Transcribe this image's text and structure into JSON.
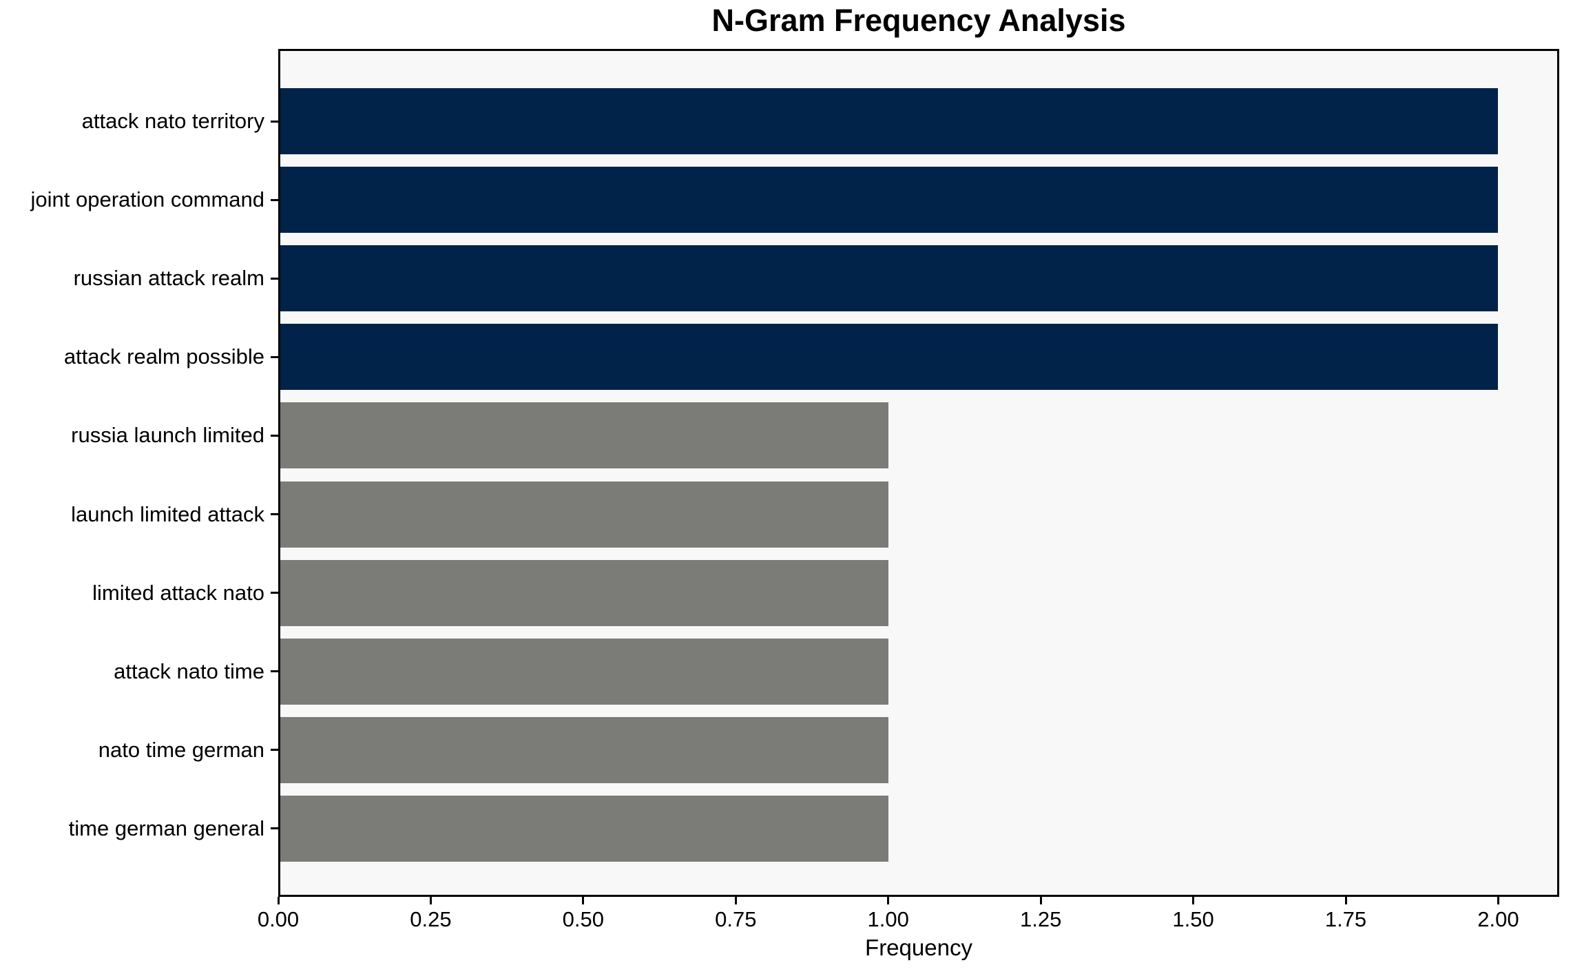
{
  "chart_data": {
    "type": "bar",
    "orientation": "horizontal",
    "title": "N-Gram Frequency Analysis",
    "xlabel": "Frequency",
    "ylabel": "",
    "categories": [
      "attack nato territory",
      "joint operation command",
      "russian attack realm",
      "attack realm possible",
      "russia launch limited",
      "launch limited attack",
      "limited attack nato",
      "attack nato time",
      "nato time german",
      "time german general"
    ],
    "values": [
      2,
      2,
      2,
      2,
      1,
      1,
      1,
      1,
      1,
      1
    ],
    "bar_colors": [
      "#012349",
      "#012349",
      "#012349",
      "#012349",
      "#7b7b78",
      "#7b7b78",
      "#7b7b78",
      "#7b7b78",
      "#7b7b78",
      "#7b7b78"
    ],
    "xlim": [
      0,
      2.1
    ],
    "xticks": [
      {
        "value": 0.0,
        "label": "0.00"
      },
      {
        "value": 0.25,
        "label": "0.25"
      },
      {
        "value": 0.5,
        "label": "0.50"
      },
      {
        "value": 0.75,
        "label": "0.75"
      },
      {
        "value": 1.0,
        "label": "1.00"
      },
      {
        "value": 1.25,
        "label": "1.25"
      },
      {
        "value": 1.5,
        "label": "1.50"
      },
      {
        "value": 1.75,
        "label": "1.75"
      },
      {
        "value": 2.0,
        "label": "2.00"
      }
    ],
    "grid": false,
    "legend": null,
    "colors": {
      "high_frequency_bar": "#012349",
      "low_frequency_bar": "#7b7b78",
      "plot_background": "#f8f8f8",
      "figure_background": "#ffffff",
      "spine": "#000000",
      "text": "#000000"
    }
  }
}
